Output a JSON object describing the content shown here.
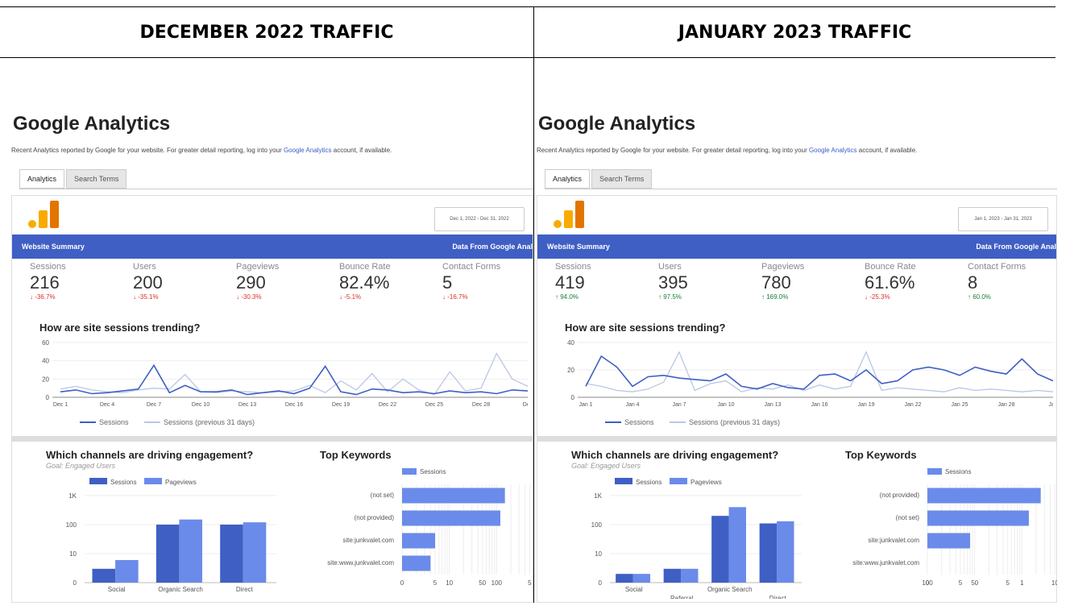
{
  "headers": {
    "left": "DECEMBER 2022 TRAFFIC",
    "right": "JANUARY 2023 TRAFFIC"
  },
  "common": {
    "title": "Google Analytics",
    "desc_before": "Recent Analytics reported by Google for your website. For greater detail reporting, log into your ",
    "desc_link": "Google Analytics",
    "desc_after": " account, if available.",
    "tab_analytics": "Analytics",
    "tab_search_terms": "Search Terms",
    "summary_label": "Website Summary",
    "summary_source": "Data From Google Anal",
    "trend_title": "How are site sessions trending?",
    "channels_title": "Which channels are driving engagement?",
    "channels_goal": "Goal: Engaged Users",
    "keywords_title": "Top Keywords",
    "legend_sessions": "Sessions",
    "legend_pageviews": "Pageviews",
    "legend_previous": "Sessions (previous 31 days)",
    "metric_labels": [
      "Sessions",
      "Users",
      "Pageviews",
      "Bounce Rate",
      "Contact Forms"
    ],
    "colors": {
      "primary": "#3f5fc4",
      "secondary": "#6b8bea",
      "light": "#b9c6e6",
      "negative": "#d93025",
      "positive": "#188038"
    }
  },
  "panels": [
    {
      "date_range": "Dec 1, 2022 - Dec 31, 2022",
      "metrics": [
        {
          "value": "216",
          "change": "-36.7%",
          "dir": "down"
        },
        {
          "value": "200",
          "change": "-35.1%",
          "dir": "down"
        },
        {
          "value": "290",
          "change": "-30.3%",
          "dir": "down"
        },
        {
          "value": "82.4%",
          "change": "-5.1%",
          "dir": "down"
        },
        {
          "value": "5",
          "change": "-16.7%",
          "dir": "down"
        }
      ]
    },
    {
      "date_range": "Jan 1, 2023 - Jan 31, 2023",
      "metrics": [
        {
          "value": "419",
          "change": "94.0%",
          "dir": "up"
        },
        {
          "value": "395",
          "change": "97.5%",
          "dir": "up"
        },
        {
          "value": "780",
          "change": "169.0%",
          "dir": "up"
        },
        {
          "value": "61.6%",
          "change": "-25.3%",
          "dir": "down"
        },
        {
          "value": "8",
          "change": "60.0%",
          "dir": "up"
        }
      ]
    }
  ],
  "chart_data": [
    {
      "type": "line",
      "title": "How are site sessions trending?",
      "panel": "December 2022",
      "x_ticks": [
        "Dec 1",
        "Dec 4",
        "Dec 7",
        "Dec 10",
        "Dec 13",
        "Dec 16",
        "Dec 19",
        "Dec 22",
        "Dec 25",
        "Dec 28",
        "Dec"
      ],
      "y_ticks": [
        "0",
        "20",
        "40",
        "60"
      ],
      "ylim": [
        0,
        60
      ],
      "series": [
        {
          "name": "Sessions",
          "values": [
            6,
            8,
            4,
            5,
            7,
            9,
            35,
            5,
            13,
            6,
            6,
            8,
            3,
            5,
            7,
            4,
            10,
            34,
            6,
            3,
            9,
            8,
            5,
            6,
            4,
            7,
            5,
            6,
            4,
            8,
            7
          ]
        },
        {
          "name": "Sessions (previous 31 days)",
          "values": [
            9,
            12,
            8,
            6,
            5,
            8,
            10,
            9,
            25,
            6,
            5,
            7,
            6,
            5,
            6,
            7,
            13,
            5,
            18,
            8,
            26,
            6,
            20,
            8,
            3,
            28,
            7,
            10,
            48,
            20,
            12
          ]
        }
      ]
    },
    {
      "type": "line",
      "title": "How are site sessions trending?",
      "panel": "January 2023",
      "x_ticks": [
        "Jan 1",
        "Jan 4",
        "Jan 7",
        "Jan 10",
        "Jan 13",
        "Jan 16",
        "Jan 19",
        "Jan 22",
        "Jan 25",
        "Jan 28",
        "Jan"
      ],
      "y_ticks": [
        "0",
        "20",
        "40"
      ],
      "ylim": [
        0,
        40
      ],
      "series": [
        {
          "name": "Sessions",
          "values": [
            8,
            30,
            22,
            8,
            15,
            16,
            14,
            13,
            12,
            17,
            8,
            6,
            10,
            7,
            6,
            16,
            17,
            12,
            20,
            10,
            12,
            20,
            22,
            20,
            16,
            22,
            19,
            17,
            28,
            17,
            12
          ]
        },
        {
          "name": "Sessions (previous 31 days)",
          "values": [
            10,
            8,
            5,
            4,
            6,
            11,
            33,
            5,
            10,
            12,
            4,
            7,
            6,
            9,
            5,
            9,
            6,
            8,
            33,
            5,
            7,
            6,
            5,
            4,
            7,
            5,
            6,
            5,
            4,
            5,
            4
          ]
        }
      ]
    },
    {
      "type": "bar",
      "title": "Which channels are driving engagement?",
      "panel": "December 2022",
      "scale": "log",
      "y_ticks": [
        "0",
        "10",
        "100",
        "1K"
      ],
      "categories": [
        "Social",
        "Organic Search",
        "Direct"
      ],
      "series": [
        {
          "name": "Sessions",
          "values": [
            3,
            100,
            100
          ]
        },
        {
          "name": "Pageviews",
          "values": [
            6,
            150,
            120
          ]
        }
      ]
    },
    {
      "type": "bar",
      "title": "Which channels are driving engagement?",
      "panel": "January 2023",
      "scale": "log",
      "y_ticks": [
        "0",
        "10",
        "100",
        "1K"
      ],
      "categories": [
        "Social",
        "Referral",
        "Organic Search",
        "Direct"
      ],
      "series": [
        {
          "name": "Sessions",
          "values": [
            2,
            3,
            200,
            110
          ]
        },
        {
          "name": "Pageviews",
          "values": [
            2,
            3,
            400,
            130
          ]
        }
      ]
    },
    {
      "type": "bar",
      "orientation": "horizontal",
      "title": "Top Keywords",
      "panel": "December 2022",
      "scale": "log",
      "x_ticks": [
        "0",
        "5",
        "10",
        "50",
        "100",
        "5"
      ],
      "categories": [
        "(not set)",
        "(not provided)",
        "site:junkvalet.com",
        "site:www.junkvalet.com"
      ],
      "series": [
        {
          "name": "Sessions",
          "values": [
            150,
            120,
            5,
            4
          ]
        }
      ]
    },
    {
      "type": "bar",
      "orientation": "horizontal",
      "title": "Top Keywords",
      "panel": "January 2023",
      "scale": "log",
      "x_ticks": [
        "0",
        "5",
        "50",
        "5",
        "1",
        "10",
        "100"
      ],
      "categories": [
        "(not provided)",
        "(not set)",
        "site:junkvalet.com",
        "site:www.junkvalet.com"
      ],
      "series": [
        {
          "name": "Sessions",
          "values": [
            250,
            140,
            8,
            0
          ]
        }
      ]
    }
  ]
}
